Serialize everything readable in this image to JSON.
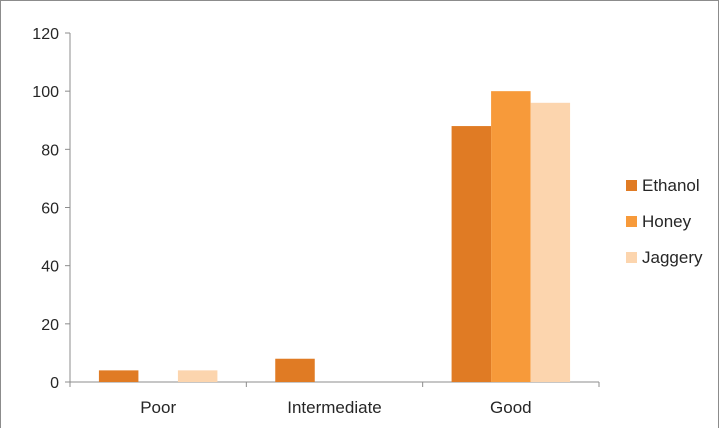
{
  "chart_data": {
    "type": "bar",
    "categories": [
      "Poor",
      "Intermediate",
      "Good"
    ],
    "series": [
      {
        "name": "Ethanol",
        "values": [
          4,
          8,
          88
        ],
        "color": "#e07b24"
      },
      {
        "name": "Honey",
        "values": [
          0,
          0,
          100
        ],
        "color": "#f79a3a"
      },
      {
        "name": "Jaggery",
        "values": [
          4,
          0,
          96
        ],
        "color": "#fcd5ae"
      }
    ],
    "yticks": [
      "0",
      "20",
      "40",
      "60",
      "80",
      "100",
      "120"
    ],
    "ylim": [
      0,
      120
    ],
    "title": "",
    "xlabel": "",
    "ylabel": "",
    "grid": false,
    "legend_position": "right"
  }
}
